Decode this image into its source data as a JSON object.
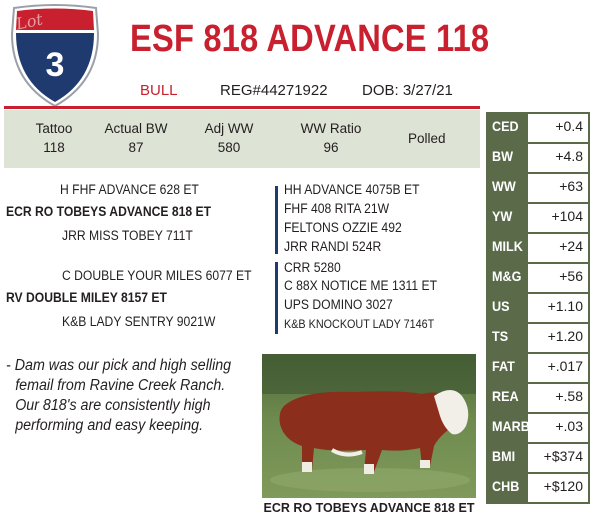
{
  "lot": {
    "word": "Lot",
    "number": "3"
  },
  "title": "ESF 818 ADVANCE 118",
  "meta": {
    "sex": "BULL",
    "reg": "REG#44271922",
    "dob": "DOB: 3/27/21"
  },
  "performance": {
    "columns": [
      {
        "header": "Tattoo",
        "value": "118"
      },
      {
        "header": "Actual BW",
        "value": "87"
      },
      {
        "header": "Adj WW",
        "value": "580"
      },
      {
        "header": "WW Ratio",
        "value": "96"
      }
    ],
    "polled": "Polled"
  },
  "pedigree": {
    "sire_sire": "H FHF ADVANCE 628 ET",
    "sire": "ECR RO TOBEYS ADVANCE 818 ET",
    "sire_dam": "JRR MISS TOBEY 711T",
    "sss": "HH ADVANCE 4075B ET",
    "ssd": "FHF 408 RITA 21W",
    "sds": "FELTONS OZZIE 492",
    "sdd": "JRR RANDI 524R",
    "dam_sire": "C DOUBLE YOUR MILES 6077 ET",
    "dam": "RV DOUBLE MILEY 8157 ET",
    "dam_dam": "K&B LADY SENTRY 9021W",
    "dss": "CRR 5280",
    "dsd": "C 88X NOTICE ME 1311 ET",
    "dds": "UPS DOMINO 3027",
    "ddd": "K&B KNOCKOUT LADY 7146T"
  },
  "note": {
    "lines": [
      "- Dam was our pick and high selling",
      "femail from Ravine Creek Ranch.",
      "Our 818's are consistently high",
      "performing and easy keeping."
    ]
  },
  "photo": {
    "caption": "ECR RO TOBEYS ADVANCE 818 ET"
  },
  "epds": [
    {
      "name": "CED",
      "value": "+0.4"
    },
    {
      "name": "BW",
      "value": "+4.8"
    },
    {
      "name": "WW",
      "value": "+63"
    },
    {
      "name": "YW",
      "value": "+104"
    },
    {
      "name": "MILK",
      "value": "+24"
    },
    {
      "name": "M&G",
      "value": "+56"
    },
    {
      "name": "US",
      "value": "+1.10"
    },
    {
      "name": "TS",
      "value": "+1.20"
    },
    {
      "name": "FAT",
      "value": "+.017"
    },
    {
      "name": "REA",
      "value": "+.58"
    },
    {
      "name": "MARB",
      "value": "+.03"
    },
    {
      "name": "BMI",
      "value": "+$374"
    },
    {
      "name": "CHB",
      "value": "+$120"
    }
  ],
  "colors": {
    "accent_red": "#c8202f",
    "shield_blue": "#1f3a6e",
    "epd_green": "#5b6b4a",
    "perf_bg": "#dde3d5"
  }
}
